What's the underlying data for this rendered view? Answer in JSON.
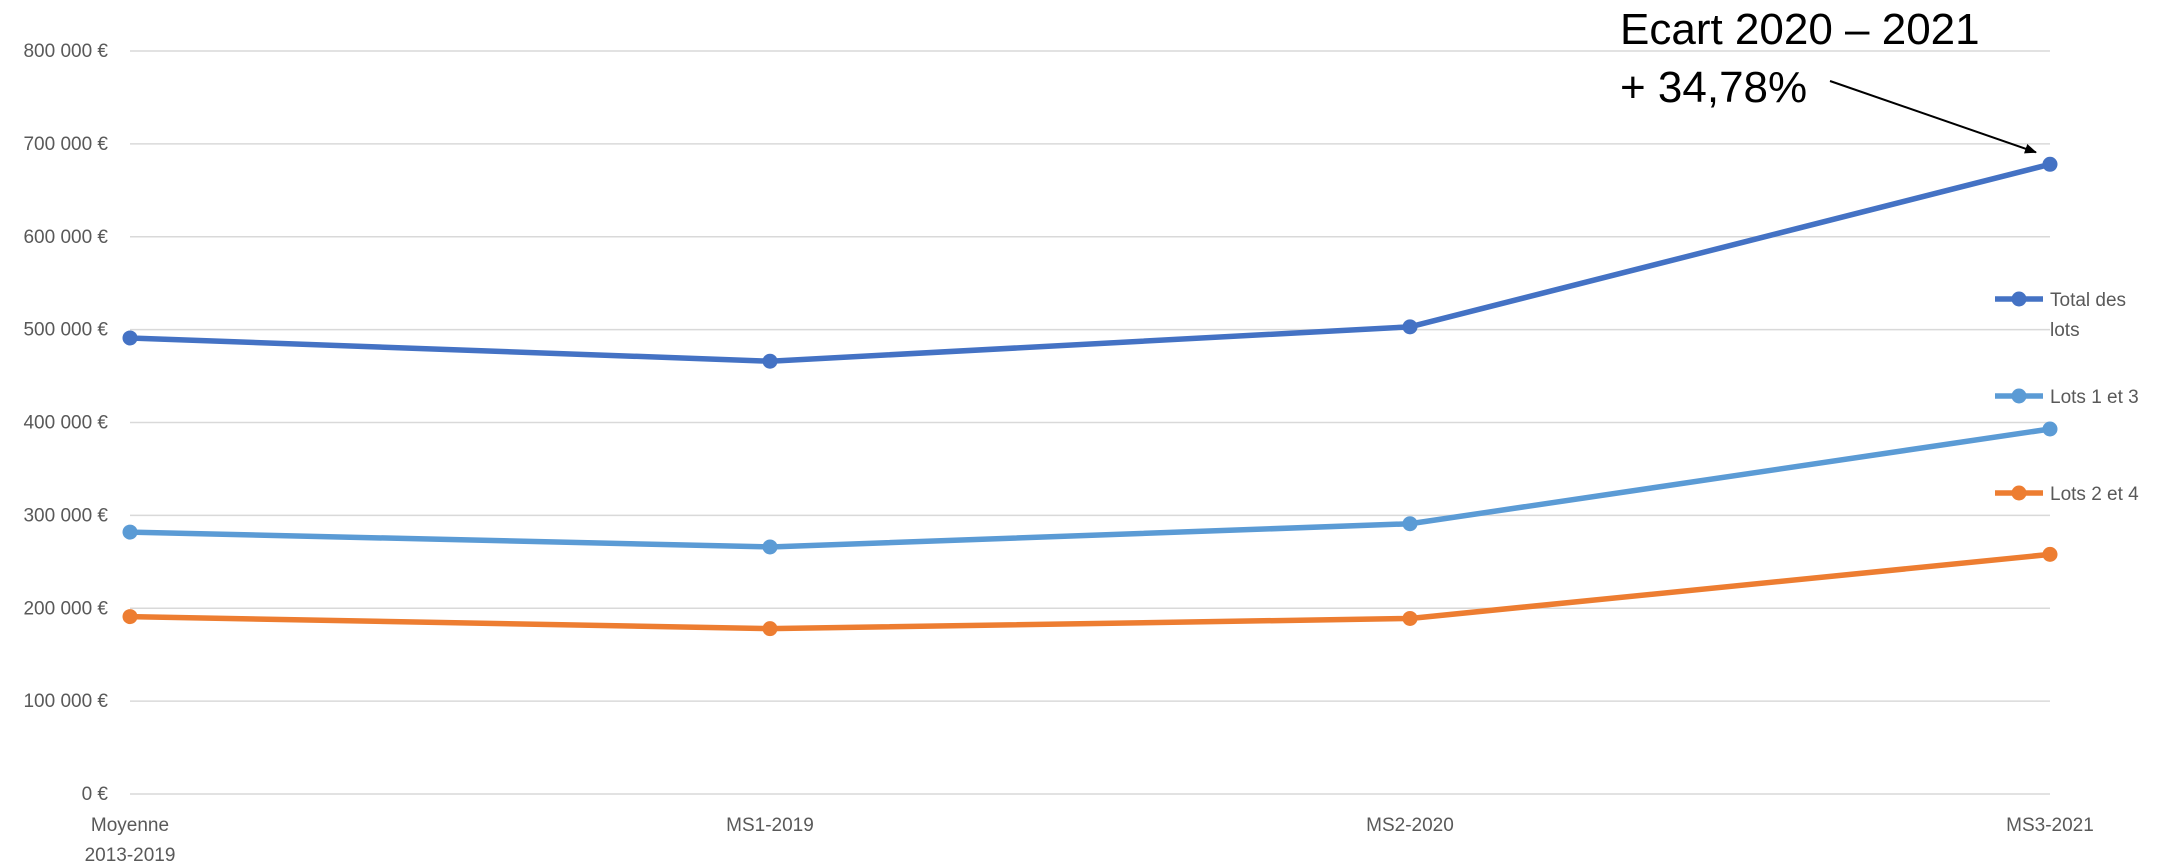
{
  "chart_data": {
    "type": "line",
    "title": "",
    "xlabel": "",
    "ylabel": "",
    "categories": [
      [
        "Moyenne",
        "2013-2019"
      ],
      [
        "MS1-2019"
      ],
      [
        "MS2-2020"
      ],
      [
        "MS3-2021"
      ]
    ],
    "y_tick_labels": [
      "0 €",
      "100 000 €",
      "200 000 €",
      "300 000 €",
      "400 000 €",
      "500 000 €",
      "600 000 €",
      "700 000 €",
      "800 000 €"
    ],
    "ylim": [
      0,
      800000
    ],
    "grid": true,
    "legend_position": "right",
    "series": [
      {
        "name": [
          "Total des",
          "lots"
        ],
        "color": "#4472C4",
        "values": [
          491000,
          466000,
          503000,
          678000
        ]
      },
      {
        "name": [
          "Lots 1 et 3"
        ],
        "color": "#5B9BD5",
        "values": [
          282000,
          266000,
          291000,
          393000
        ]
      },
      {
        "name": [
          "Lots 2 et 4"
        ],
        "color": "#ED7D31",
        "values": [
          191000,
          178000,
          189000,
          258000
        ]
      }
    ],
    "annotation": {
      "lines": [
        "Ecart 2020 – 2021",
        "+ 34,78%"
      ],
      "target_series": 0,
      "target_index": 3
    }
  }
}
